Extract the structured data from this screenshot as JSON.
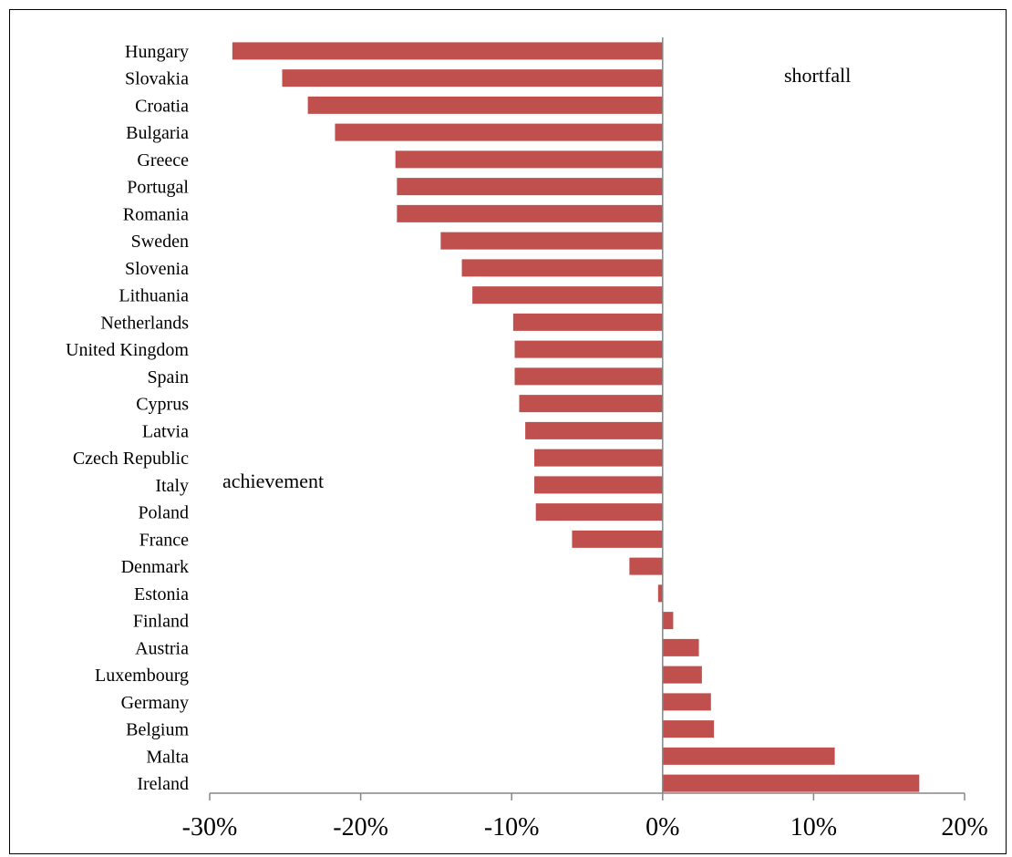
{
  "chart_data": {
    "type": "bar",
    "orientation": "horizontal",
    "categories": [
      "Hungary",
      "Slovakia",
      "Croatia",
      "Bulgaria",
      "Greece",
      "Portugal",
      "Romania",
      "Sweden",
      "Slovenia",
      "Lithuania",
      "Netherlands",
      "United Kingdom",
      "Spain",
      "Cyprus",
      "Latvia",
      "Czech Republic",
      "Italy",
      "Poland",
      "France",
      "Denmark",
      "Estonia",
      "Finland",
      "Austria",
      "Luxembourg",
      "Germany",
      "Belgium",
      "Malta",
      "Ireland"
    ],
    "values": [
      -28.5,
      -25.2,
      -23.5,
      -21.7,
      -17.7,
      -17.6,
      -17.6,
      -14.7,
      -13.3,
      -12.6,
      -9.9,
      -9.8,
      -9.8,
      -9.5,
      -9.1,
      -8.5,
      -8.5,
      -8.4,
      -6.0,
      -2.2,
      -0.3,
      0.7,
      2.4,
      2.6,
      3.2,
      3.4,
      11.4,
      17.0
    ],
    "xlim": [
      -30,
      20
    ],
    "xticks": [
      -30,
      -20,
      -10,
      0,
      10,
      20
    ],
    "xtick_labels": [
      "-30%",
      "-20%",
      "-10%",
      "0%",
      "10%",
      "20%"
    ],
    "bar_color": "#C0504D",
    "grid": false,
    "annotations": {
      "shortfall": "shortfall",
      "achievement": "achievement"
    }
  }
}
